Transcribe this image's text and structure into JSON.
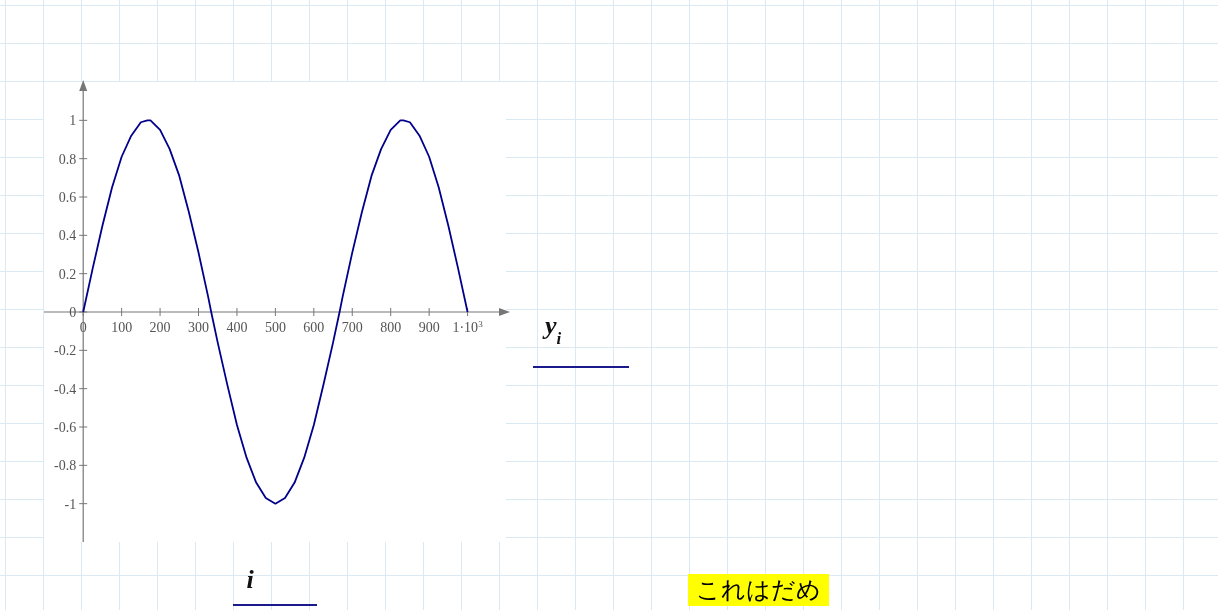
{
  "chart_data": {
    "type": "line",
    "xlabel": "i",
    "ylabel": "y$_{i}$",
    "x": [
      0,
      25,
      50,
      75,
      100,
      125,
      150,
      167,
      175,
      200,
      225,
      250,
      275,
      300,
      325,
      333,
      350,
      375,
      400,
      425,
      450,
      475,
      500,
      525,
      550,
      575,
      600,
      625,
      650,
      667,
      675,
      700,
      725,
      750,
      775,
      800,
      825,
      833,
      850,
      875,
      900,
      925,
      950,
      975,
      1000
    ],
    "series": [
      {
        "color": "#00008b",
        "values": [
          0,
          0.23,
          0.45,
          0.65,
          0.81,
          0.92,
          0.99,
          1,
          1,
          0.95,
          0.85,
          0.71,
          0.52,
          0.31,
          0.08,
          0,
          -0.16,
          -0.38,
          -0.59,
          -0.76,
          -0.89,
          -0.97,
          -1,
          -0.97,
          -0.89,
          -0.76,
          -0.59,
          -0.38,
          -0.16,
          0,
          0.08,
          0.31,
          0.52,
          0.71,
          0.85,
          0.95,
          1,
          1,
          0.99,
          0.92,
          0.81,
          0.65,
          0.45,
          0.23,
          0
        ]
      }
    ],
    "xlim": [
      -102,
      1100
    ],
    "ylim": [
      -1.2,
      1.2
    ],
    "xticks": [
      0,
      100,
      200,
      300,
      400,
      500,
      600,
      700,
      800,
      900,
      {
        "value": 1000,
        "label": "1·10$^{3}$"
      }
    ],
    "yticks": [
      -1,
      -0.8,
      -0.6,
      -0.4,
      -0.2,
      0,
      0.2,
      0.4,
      0.6,
      0.8,
      1
    ],
    "marker": "none",
    "line_style": "solid",
    "annotations": [
      "これはだめ"
    ]
  }
}
